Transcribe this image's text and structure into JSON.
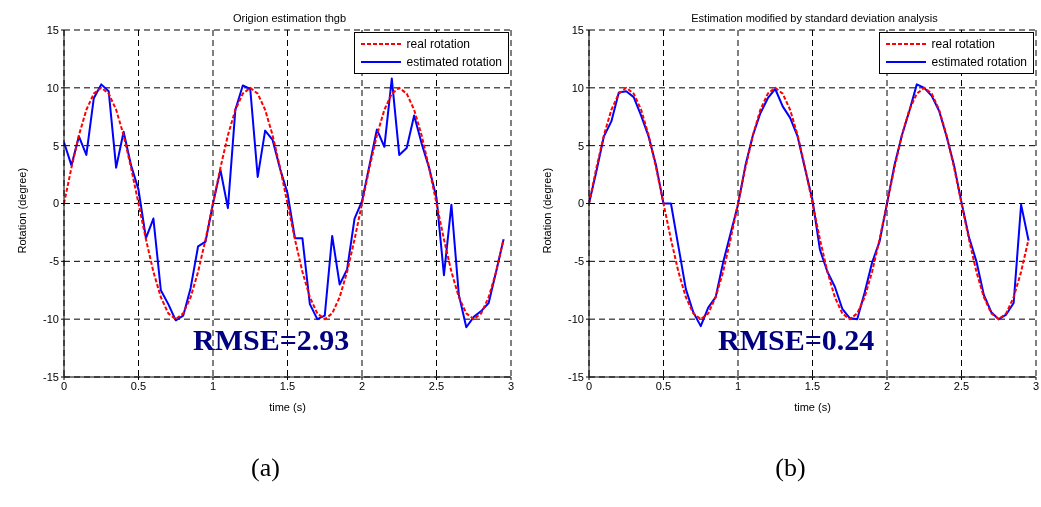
{
  "chart_data": [
    {
      "type": "line",
      "title": "Origion estimation thgb",
      "xlabel": "time (s)",
      "ylabel": "Rotation (degree)",
      "x": [
        0,
        0.05,
        0.1,
        0.15,
        0.2,
        0.25,
        0.3,
        0.35,
        0.4,
        0.45,
        0.5,
        0.55,
        0.6,
        0.65,
        0.7,
        0.75,
        0.8,
        0.85,
        0.9,
        0.95,
        1,
        1.05,
        1.1,
        1.15,
        1.2,
        1.25,
        1.3,
        1.35,
        1.4,
        1.45,
        1.5,
        1.55,
        1.6,
        1.65,
        1.7,
        1.75,
        1.8,
        1.85,
        1.9,
        1.95,
        2,
        2.05,
        2.1,
        2.15,
        2.2,
        2.25,
        2.3,
        2.35,
        2.4,
        2.45,
        2.5,
        2.55,
        2.6,
        2.65,
        2.7,
        2.75,
        2.8,
        2.85,
        2.9,
        2.95
      ],
      "series": [
        {
          "name": "real rotation",
          "color": "#ff0000",
          "line_style": "dashed",
          "values": [
            0,
            3.1,
            5.9,
            8.1,
            9.5,
            10,
            9.5,
            8.1,
            5.9,
            3.1,
            0,
            -3.1,
            -5.9,
            -8.1,
            -9.5,
            -10,
            -9.5,
            -8.1,
            -5.9,
            -3.1,
            0,
            3.1,
            5.9,
            8.1,
            9.5,
            10,
            9.5,
            8.1,
            5.9,
            3.1,
            0,
            -3.1,
            -5.9,
            -8.1,
            -9.5,
            -10,
            -9.5,
            -8.1,
            -5.9,
            -3.1,
            0,
            3.1,
            5.9,
            8.1,
            9.5,
            10,
            9.5,
            8.1,
            5.9,
            3.1,
            0,
            -3.1,
            -5.9,
            -8.1,
            -9.5,
            -10,
            -9.5,
            -8.1,
            -5.9,
            -3.1
          ]
        },
        {
          "name": "estimated rotation",
          "color": "#0000ff",
          "line_style": "solid",
          "values": [
            5.3,
            3.3,
            5.8,
            4.2,
            9.1,
            10.3,
            9.7,
            3.1,
            6.2,
            3.3,
            1.2,
            -3,
            -1.3,
            -7.5,
            -8.7,
            -10.1,
            -9.7,
            -7.3,
            -3.7,
            -3.3,
            0,
            2.9,
            -0.4,
            8.1,
            10.2,
            9.9,
            2.3,
            6.3,
            5.5,
            3,
            0.9,
            -3,
            -3,
            -8.7,
            -10,
            -9.7,
            -2.8,
            -7,
            -5.7,
            -1.3,
            0.2,
            3.3,
            6.4,
            4.9,
            10.8,
            4.2,
            4.8,
            7.6,
            5.2,
            3.1,
            0.5,
            -6.2,
            -0.1,
            -7.9,
            -10.7,
            -9.8,
            -9.3,
            -8.6,
            -5.9,
            -3.1
          ]
        }
      ],
      "xlim": [
        0,
        3
      ],
      "xticks": [
        0,
        0.5,
        1,
        1.5,
        2,
        2.5,
        3
      ],
      "ylim": [
        -15,
        15
      ],
      "yticks": [
        -15,
        -10,
        -5,
        0,
        5,
        10,
        15
      ],
      "grid": true,
      "legend": "top right",
      "annotations": [
        "RMSE=2.93",
        "(a)"
      ]
    },
    {
      "type": "line",
      "title": "Estimation modified by standard deviation analysis",
      "xlabel": "time (s)",
      "ylabel": "Rotation (degree)",
      "x": [
        0,
        0.05,
        0.1,
        0.15,
        0.2,
        0.25,
        0.3,
        0.35,
        0.4,
        0.45,
        0.5,
        0.55,
        0.6,
        0.65,
        0.7,
        0.75,
        0.8,
        0.85,
        0.9,
        0.95,
        1,
        1.05,
        1.1,
        1.15,
        1.2,
        1.25,
        1.3,
        1.35,
        1.4,
        1.45,
        1.5,
        1.55,
        1.6,
        1.65,
        1.7,
        1.75,
        1.8,
        1.85,
        1.9,
        1.95,
        2,
        2.05,
        2.1,
        2.15,
        2.2,
        2.25,
        2.3,
        2.35,
        2.4,
        2.45,
        2.5,
        2.55,
        2.6,
        2.65,
        2.7,
        2.75,
        2.8,
        2.85,
        2.9,
        2.95
      ],
      "series": [
        {
          "name": "real rotation",
          "color": "#ff0000",
          "line_style": "dashed",
          "values": [
            0,
            3.1,
            5.9,
            8.1,
            9.5,
            10,
            9.5,
            8.1,
            5.9,
            3.1,
            0,
            -3.1,
            -5.9,
            -8.1,
            -9.5,
            -10,
            -9.5,
            -8.1,
            -5.9,
            -3.1,
            0,
            3.1,
            5.9,
            8.1,
            9.5,
            10,
            9.5,
            8.1,
            5.9,
            3.1,
            0,
            -3.1,
            -5.9,
            -8.1,
            -9.5,
            -10,
            -9.5,
            -8.1,
            -5.9,
            -3.1,
            0,
            3.1,
            5.9,
            8.1,
            9.5,
            10,
            9.5,
            8.1,
            5.9,
            3.1,
            0,
            -3.1,
            -5.9,
            -8.1,
            -9.5,
            -10,
            -9.5,
            -8.1,
            -5.9,
            -3.1
          ]
        },
        {
          "name": "estimated rotation",
          "color": "#0000ff",
          "line_style": "solid",
          "values": [
            0,
            2.8,
            5.8,
            7.1,
            9.6,
            9.7,
            9.2,
            7.6,
            5.8,
            3.3,
            0,
            0,
            -3.7,
            -7.4,
            -9.4,
            -10.6,
            -9,
            -8.1,
            -5.1,
            -2.6,
            -0.1,
            3.3,
            5.9,
            7.8,
            9.1,
            9.9,
            8.4,
            7.4,
            5.8,
            3,
            0.3,
            -4,
            -5.9,
            -7.2,
            -9.1,
            -9.9,
            -10,
            -7.7,
            -5.1,
            -3.3,
            0,
            3.3,
            5.9,
            8,
            10.3,
            10,
            9.3,
            8,
            5.8,
            3.3,
            0.1,
            -2.9,
            -5,
            -7.9,
            -9.4,
            -10,
            -9.6,
            -8.6,
            -0.1,
            -3.2
          ]
        }
      ],
      "xlim": [
        0,
        3
      ],
      "xticks": [
        0,
        0.5,
        1,
        1.5,
        2,
        2.5,
        3
      ],
      "ylim": [
        -15,
        15
      ],
      "yticks": [
        -15,
        -10,
        -5,
        0,
        5,
        10,
        15
      ],
      "grid": true,
      "legend": "top right",
      "annotations": [
        "RMSE=0.24",
        "(b)"
      ]
    }
  ]
}
